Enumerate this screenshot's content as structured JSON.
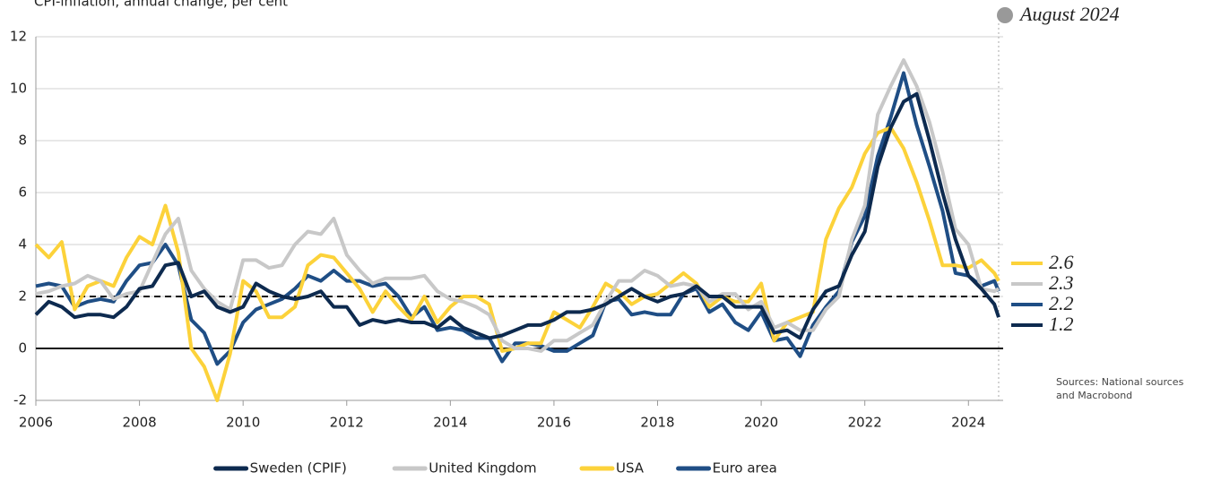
{
  "chart_data": {
    "type": "line",
    "title": "CPI-inflation, annual change, per cent",
    "annotation": "August 2024",
    "source": [
      "Sources: National sources",
      "and Macrobond"
    ],
    "x": [
      2006,
      2006.25,
      2006.5,
      2006.75,
      2007,
      2007.25,
      2007.5,
      2007.75,
      2008,
      2008.25,
      2008.5,
      2008.75,
      2009,
      2009.25,
      2009.5,
      2009.75,
      2010,
      2010.25,
      2010.5,
      2010.75,
      2011,
      2011.25,
      2011.5,
      2011.75,
      2012,
      2012.25,
      2012.5,
      2012.75,
      2013,
      2013.25,
      2013.5,
      2013.75,
      2014,
      2014.25,
      2014.5,
      2014.75,
      2015,
      2015.25,
      2015.5,
      2015.75,
      2016,
      2016.25,
      2016.5,
      2016.75,
      2017,
      2017.25,
      2017.5,
      2017.75,
      2018,
      2018.25,
      2018.5,
      2018.75,
      2019,
      2019.25,
      2019.5,
      2019.75,
      2020,
      2020.25,
      2020.5,
      2020.75,
      2021,
      2021.25,
      2021.5,
      2021.75,
      2022,
      2022.25,
      2022.5,
      2022.75,
      2023,
      2023.25,
      2023.5,
      2023.75,
      2024,
      2024.25,
      2024.5,
      2024.583
    ],
    "series": [
      {
        "name": "Sweden (CPIF)",
        "color": "#0d2a4f",
        "values": [
          1.3,
          1.8,
          1.6,
          1.2,
          1.3,
          1.3,
          1.2,
          1.6,
          2.3,
          2.4,
          3.2,
          3.3,
          2.0,
          2.2,
          1.6,
          1.4,
          1.6,
          2.5,
          2.2,
          2.0,
          1.9,
          2.0,
          2.2,
          1.6,
          1.6,
          0.9,
          1.1,
          1.0,
          1.1,
          1.0,
          1.0,
          0.8,
          1.2,
          0.8,
          0.6,
          0.4,
          0.5,
          0.7,
          0.9,
          0.9,
          1.1,
          1.4,
          1.4,
          1.5,
          1.7,
          2.0,
          2.3,
          2.0,
          1.8,
          2.0,
          2.1,
          2.4,
          2.0,
          2.0,
          1.6,
          1.6,
          1.6,
          0.6,
          0.7,
          0.4,
          1.5,
          2.2,
          2.4,
          3.6,
          4.5,
          7.0,
          8.5,
          9.5,
          9.8,
          8.0,
          6.0,
          4.2,
          2.8,
          2.3,
          1.7,
          1.2
        ]
      },
      {
        "name": "United Kingdom",
        "color": "#c8c8c8",
        "values": [
          2.1,
          2.2,
          2.4,
          2.5,
          2.8,
          2.6,
          1.9,
          2.1,
          2.2,
          3.3,
          4.4,
          5.0,
          3.0,
          2.3,
          1.8,
          1.5,
          3.4,
          3.4,
          3.1,
          3.2,
          4.0,
          4.5,
          4.4,
          5.0,
          3.6,
          3.0,
          2.5,
          2.7,
          2.7,
          2.7,
          2.8,
          2.2,
          1.9,
          1.8,
          1.6,
          1.3,
          0.3,
          0.0,
          0.0,
          -0.1,
          0.3,
          0.3,
          0.6,
          0.9,
          1.8,
          2.6,
          2.6,
          3.0,
          2.8,
          2.4,
          2.5,
          2.4,
          1.8,
          2.1,
          2.1,
          1.5,
          1.8,
          0.8,
          1.0,
          0.7,
          0.7,
          1.5,
          2.0,
          4.2,
          5.5,
          9.0,
          10.1,
          11.1,
          10.1,
          8.7,
          6.8,
          4.6,
          4.0,
          2.3,
          2.2,
          2.3
        ]
      },
      {
        "name": "USA",
        "color": "#fcd23a",
        "values": [
          4.0,
          3.5,
          4.1,
          1.5,
          2.4,
          2.6,
          2.4,
          3.5,
          4.3,
          4.0,
          5.5,
          3.7,
          0.0,
          -0.7,
          -2.0,
          -0.2,
          2.6,
          2.2,
          1.2,
          1.2,
          1.6,
          3.2,
          3.6,
          3.5,
          2.9,
          2.3,
          1.4,
          2.2,
          1.6,
          1.1,
          2.0,
          1.0,
          1.6,
          2.0,
          2.0,
          1.7,
          -0.1,
          0.0,
          0.2,
          0.2,
          1.4,
          1.1,
          0.8,
          1.6,
          2.5,
          2.2,
          1.7,
          2.0,
          2.1,
          2.5,
          2.9,
          2.5,
          1.6,
          2.0,
          1.8,
          1.8,
          2.5,
          0.3,
          1.0,
          1.2,
          1.4,
          4.2,
          5.4,
          6.2,
          7.5,
          8.3,
          8.5,
          7.7,
          6.4,
          4.9,
          3.2,
          3.2,
          3.1,
          3.4,
          2.9,
          2.6
        ]
      },
      {
        "name": "Euro area",
        "color": "#1f4e85",
        "values": [
          2.4,
          2.5,
          2.4,
          1.6,
          1.8,
          1.9,
          1.8,
          2.6,
          3.2,
          3.3,
          4.0,
          3.2,
          1.1,
          0.6,
          -0.6,
          -0.1,
          1.0,
          1.5,
          1.7,
          1.9,
          2.3,
          2.8,
          2.6,
          3.0,
          2.6,
          2.6,
          2.4,
          2.5,
          2.0,
          1.2,
          1.6,
          0.7,
          0.8,
          0.7,
          0.4,
          0.4,
          -0.5,
          0.2,
          0.2,
          0.1,
          -0.1,
          -0.1,
          0.2,
          0.5,
          1.8,
          1.9,
          1.3,
          1.4,
          1.3,
          1.3,
          2.1,
          2.3,
          1.4,
          1.7,
          1.0,
          0.7,
          1.4,
          0.3,
          0.4,
          -0.3,
          0.9,
          1.6,
          2.2,
          4.1,
          5.1,
          7.4,
          8.9,
          10.6,
          8.6,
          7.0,
          5.3,
          2.9,
          2.8,
          2.4,
          2.6,
          2.2
        ]
      }
    ],
    "end_label_order": [
      2,
      1,
      3,
      0
    ],
    "hlines": [
      {
        "value": 2,
        "style": "dashed"
      },
      {
        "value": 0,
        "style": "solid"
      }
    ],
    "xlim": [
      2006,
      2024.67
    ],
    "xticks": [
      2006,
      2008,
      2010,
      2012,
      2014,
      2016,
      2018,
      2020,
      2022,
      2024
    ],
    "ylim": [
      -2,
      12
    ],
    "yticks": [
      -2,
      0,
      2,
      4,
      6,
      8,
      10,
      12
    ],
    "grid": true
  }
}
